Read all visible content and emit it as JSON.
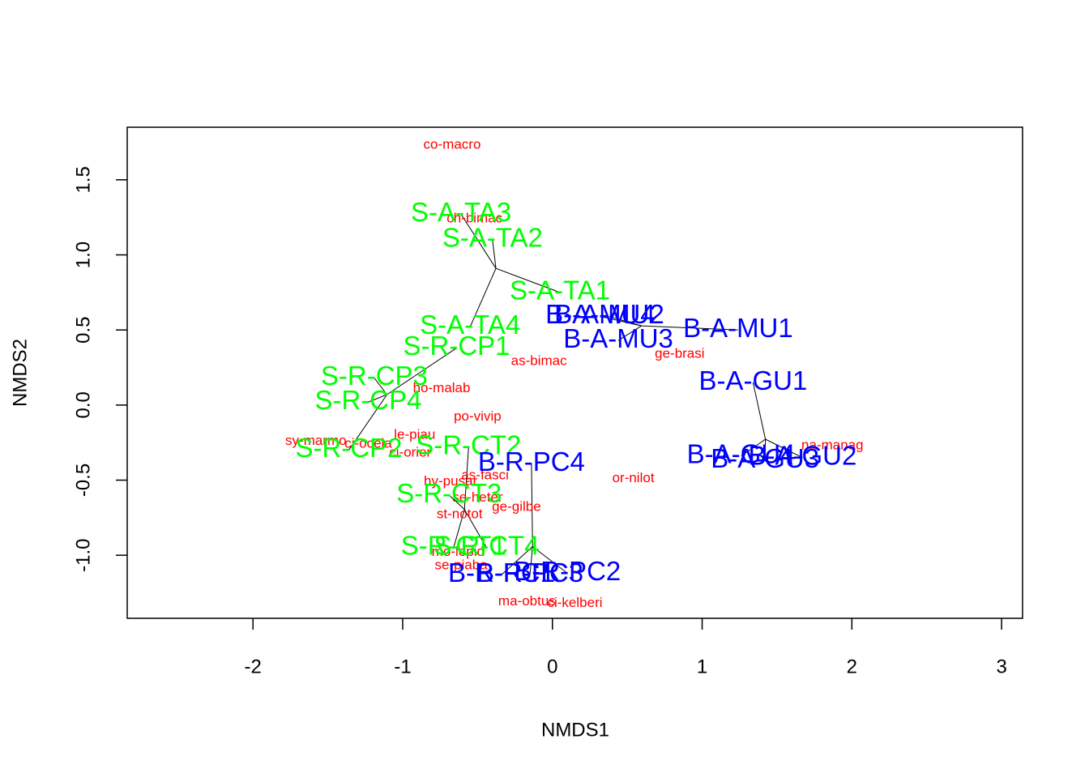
{
  "chart_data": {
    "type": "scatter",
    "xlabel": "NMDS1",
    "ylabel": "NMDS2",
    "xlim": [
      -2.84,
      3.14
    ],
    "ylim": [
      -1.42,
      1.85
    ],
    "xticks": [
      -2,
      -1,
      0,
      1,
      2,
      3
    ],
    "yticks": [
      {
        "value": -1,
        "label": "-1.0"
      },
      {
        "value": -0.5,
        "label": "-0.5"
      },
      {
        "value": 0,
        "label": "0.0"
      },
      {
        "value": 0.5,
        "label": "0.5"
      },
      {
        "value": 1,
        "label": "1.0"
      },
      {
        "value": 1.5,
        "label": "1.5"
      }
    ],
    "groups": [
      {
        "color": "#00ff00",
        "labels": [
          "S-A-TA3",
          "S-A-TA2",
          "S-A-TA1",
          "S-A-TA4"
        ],
        "x": [
          -0.61,
          -0.4,
          0.05,
          -0.55
        ],
        "y": [
          1.27,
          1.1,
          0.75,
          0.52
        ]
      },
      {
        "color": "#00ff00",
        "labels": [
          "S-R-CP1",
          "S-R-CP3",
          "S-R-CP4",
          "S-R-CP2"
        ],
        "x": [
          -0.64,
          -1.19,
          -1.23,
          -1.36
        ],
        "y": [
          0.38,
          0.18,
          0.02,
          -0.3
        ]
      },
      {
        "color": "#00ff00",
        "labels": [
          "S-R-CT2",
          "S-R-CT3",
          "S-R-CT1",
          "S-R-CT4"
        ],
        "x": [
          -0.56,
          -0.69,
          -0.66,
          -0.44
        ],
        "y": [
          -0.28,
          -0.6,
          -0.95,
          -0.95
        ]
      },
      {
        "color": "#0000ff",
        "labels": [
          "B-A-MU4",
          "B-A-MU2",
          "B-A-MU3",
          "B-A-MU1"
        ],
        "x": [
          0.32,
          0.38,
          0.44,
          1.24
        ],
        "y": [
          0.59,
          0.59,
          0.43,
          0.5
        ]
      },
      {
        "color": "#0000ff",
        "labels": [
          "B-A-GU1",
          "B-A-GU4",
          "B-A-GU3",
          "B-A-GU2"
        ],
        "x": [
          1.34,
          1.26,
          1.42,
          1.67
        ],
        "y": [
          0.15,
          -0.34,
          -0.37,
          -0.35
        ]
      },
      {
        "color": "#0000ff",
        "labels": [
          "B-R-PC4",
          "B-R-PC1",
          "B-R-PC3",
          "B-R-PC2"
        ],
        "x": [
          -0.14,
          -0.34,
          -0.15,
          0.1
        ],
        "y": [
          -0.39,
          -1.13,
          -1.13,
          -1.12
        ]
      }
    ],
    "species": {
      "color": "#ff0000",
      "labels": [
        "co-macro",
        "ch-bimac",
        "as-bimac",
        "ge-brasi",
        "ho-malab",
        "po-vivip",
        "le-piau",
        "sy-marmo",
        "ci-ocela",
        "ci-orier",
        "na-manag",
        "or-nilot",
        "as-fasci",
        "hy-pusar",
        "se-heter",
        "ge-gilbe",
        "st-notot",
        "mo-lepid",
        "se-piaba",
        "ma-obtus",
        "ci-kelberi"
      ],
      "x": [
        -0.67,
        -0.52,
        -0.09,
        0.85,
        -0.74,
        -0.5,
        -0.92,
        -1.58,
        -1.23,
        -0.95,
        1.87,
        0.54,
        -0.45,
        -0.68,
        -0.5,
        -0.24,
        -0.62,
        -0.63,
        -0.61,
        -0.17,
        0.15
      ],
      "y": [
        1.73,
        1.24,
        0.29,
        0.34,
        0.11,
        -0.08,
        -0.2,
        -0.24,
        -0.26,
        -0.32,
        -0.27,
        -0.49,
        -0.47,
        -0.51,
        -0.62,
        -0.68,
        -0.73,
        -0.98,
        -1.07,
        -1.31,
        -1.32
      ]
    }
  }
}
